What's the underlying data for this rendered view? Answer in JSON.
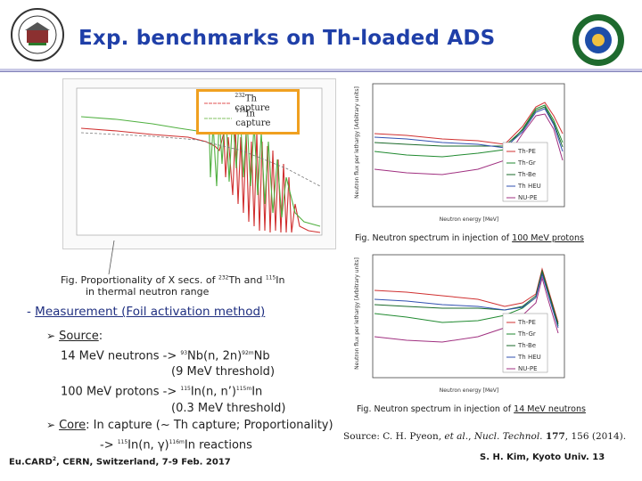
{
  "header": {
    "title": "Exp. benchmarks on Th-loaded ADS"
  },
  "left_plot": {
    "legend": [
      {
        "label_sup": "232",
        "label": "Th capture",
        "color": "#e05050"
      },
      {
        "label_sup": "115",
        "label": "In capture",
        "color": "#80c060"
      }
    ],
    "caption_prefix": "Fig. Proportionality of X secs. of ",
    "caption_sup1": "232",
    "caption_mid": "Th and ",
    "caption_sup2": "115",
    "caption_suffix": "In",
    "caption_line2": "in thermal neutron range"
  },
  "right_plot_top": {
    "ylabel": "Neutron flux per lethargy [Arbitrary units]",
    "xlabel": "Neutron energy [MeV]",
    "legend": [
      "Th-PE",
      "Th-Gr",
      "Th-Be",
      "Th HEU",
      "NU-PE"
    ],
    "caption_prefix": "Fig. Neutron spectrum in injection of ",
    "caption_link": "100 MeV protons"
  },
  "right_plot_bottom": {
    "ylabel": "Neutron flux per lethargy [Arbitrary units]",
    "xlabel": "Neutron energy [MeV]",
    "legend": [
      "Th-PE",
      "Th-Gr",
      "Th-Be",
      "Th HEU",
      "NU-PE"
    ],
    "caption_prefix": "Fig. Neutron spectrum in injection of ",
    "caption_link": "14 MeV neutrons"
  },
  "section": {
    "dash": "-",
    "title": "Measurement (Foil activation method)"
  },
  "body": {
    "source_label": "Source",
    "line1": "14 MeV neutrons -> ",
    "line1_sup1": "93",
    "line1_mid": "Nb(n, 2n)",
    "line1_sup2": "92m",
    "line1_end": "Nb",
    "line2": "(9 MeV threshold)",
    "line3": "100 MeV protons -> ",
    "line3_sup1": "115",
    "line3_mid": "In(n, n’)",
    "line3_sup2": "115m",
    "line3_end": "In",
    "line4": "(0.3 MeV threshold)",
    "core_label": "Core",
    "core_text": ": In capture (~ Th capture; Proportionality)",
    "line6_pre": "-> ",
    "line6_sup1": "115",
    "line6_mid": "In(n, γ)",
    "line6_sup2": "116m",
    "line6_end": "In reactions"
  },
  "source_ref": {
    "pre": "Source: C. H. Pyeon, ",
    "etal": "et al.",
    "journal": "Nucl. Technol.",
    "vol": "177",
    "post": ", 156 (2014)."
  },
  "footer": {
    "left": "Eu.CARD",
    "left_sup": "2",
    "left_rest": ", CERN, Switzerland, 7-9 Feb. 2017",
    "right": "S. H. Kim, Kyoto Univ.   13"
  },
  "colors": {
    "title": "#1f3fa8",
    "highlight_box": "#f0a020"
  }
}
